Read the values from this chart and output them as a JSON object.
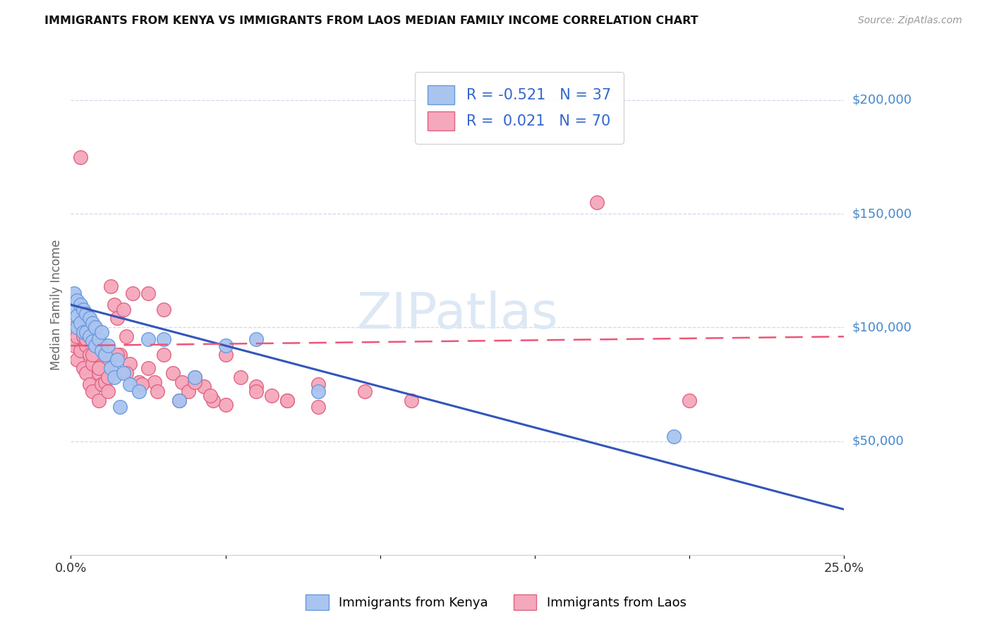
{
  "title": "IMMIGRANTS FROM KENYA VS IMMIGRANTS FROM LAOS MEDIAN FAMILY INCOME CORRELATION CHART",
  "source": "Source: ZipAtlas.com",
  "ylabel": "Median Family Income",
  "xlim": [
    0.0,
    0.25
  ],
  "ylim": [
    0,
    220000
  ],
  "xticks": [
    0.0,
    0.05,
    0.1,
    0.15,
    0.2,
    0.25
  ],
  "xticklabels": [
    "0.0%",
    "",
    "",
    "",
    "",
    "25.0%"
  ],
  "ytick_positions": [
    50000,
    100000,
    150000,
    200000
  ],
  "ytick_labels": [
    "$50,000",
    "$100,000",
    "$150,000",
    "$200,000"
  ],
  "kenya_color": "#aac4f0",
  "kenya_edge": "#6699dd",
  "laos_color": "#f5a8bc",
  "laos_edge": "#e06080",
  "trend_kenya_color": "#3355bb",
  "trend_laos_color": "#ee5577",
  "watermark_text": "ZIPatlas",
  "background_color": "#ffffff",
  "grid_color": "#d0d8ee",
  "legend_r_kenya": "-0.521",
  "legend_n_kenya": "37",
  "legend_r_laos": "0.021",
  "legend_n_laos": "70",
  "kenya_trend_x0": 0.0,
  "kenya_trend_y0": 110000,
  "kenya_trend_x1": 0.25,
  "kenya_trend_y1": 20000,
  "laos_trend_x0": 0.0,
  "laos_trend_y0": 92000,
  "laos_trend_x1": 0.25,
  "laos_trend_y1": 96000,
  "kenya_x": [
    0.001,
    0.001,
    0.002,
    0.002,
    0.002,
    0.003,
    0.003,
    0.004,
    0.004,
    0.005,
    0.005,
    0.006,
    0.006,
    0.007,
    0.007,
    0.008,
    0.008,
    0.009,
    0.01,
    0.01,
    0.011,
    0.012,
    0.013,
    0.014,
    0.015,
    0.017,
    0.019,
    0.022,
    0.025,
    0.03,
    0.035,
    0.04,
    0.05,
    0.06,
    0.08,
    0.195,
    0.016
  ],
  "kenya_y": [
    115000,
    108000,
    112000,
    105000,
    100000,
    110000,
    102000,
    108000,
    98000,
    106000,
    98000,
    104000,
    96000,
    102000,
    94000,
    100000,
    92000,
    95000,
    98000,
    90000,
    88000,
    92000,
    82000,
    78000,
    86000,
    80000,
    75000,
    72000,
    95000,
    95000,
    68000,
    78000,
    92000,
    95000,
    72000,
    52000,
    65000
  ],
  "laos_x": [
    0.001,
    0.001,
    0.002,
    0.002,
    0.003,
    0.003,
    0.004,
    0.004,
    0.005,
    0.005,
    0.006,
    0.006,
    0.007,
    0.007,
    0.008,
    0.008,
    0.009,
    0.009,
    0.01,
    0.01,
    0.011,
    0.011,
    0.012,
    0.012,
    0.013,
    0.014,
    0.015,
    0.016,
    0.017,
    0.018,
    0.019,
    0.02,
    0.022,
    0.025,
    0.027,
    0.03,
    0.033,
    0.036,
    0.038,
    0.04,
    0.043,
    0.046,
    0.05,
    0.055,
    0.06,
    0.065,
    0.07,
    0.08,
    0.095,
    0.11,
    0.003,
    0.005,
    0.007,
    0.009,
    0.012,
    0.015,
    0.018,
    0.023,
    0.028,
    0.035,
    0.04,
    0.045,
    0.05,
    0.06,
    0.07,
    0.08,
    0.17,
    0.2,
    0.025,
    0.03
  ],
  "laos_y": [
    100000,
    92000,
    96000,
    86000,
    102000,
    90000,
    96000,
    82000,
    92000,
    80000,
    88000,
    75000,
    84000,
    72000,
    100000,
    88000,
    80000,
    68000,
    92000,
    75000,
    88000,
    76000,
    84000,
    72000,
    118000,
    110000,
    104000,
    88000,
    108000,
    96000,
    84000,
    115000,
    76000,
    82000,
    76000,
    88000,
    80000,
    76000,
    72000,
    78000,
    74000,
    68000,
    88000,
    78000,
    74000,
    70000,
    68000,
    75000,
    72000,
    68000,
    175000,
    95000,
    88000,
    82000,
    78000,
    88000,
    80000,
    75000,
    72000,
    68000,
    76000,
    70000,
    66000,
    72000,
    68000,
    65000,
    155000,
    68000,
    115000,
    108000
  ]
}
